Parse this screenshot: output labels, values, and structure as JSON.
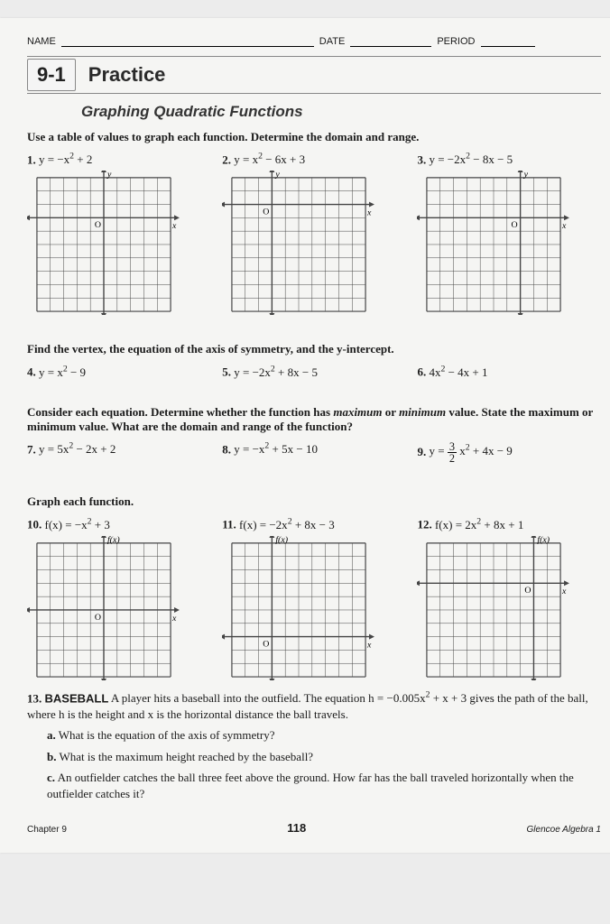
{
  "header": {
    "name_label": "NAME",
    "date_label": "DATE",
    "period_label": "PERIOD"
  },
  "lesson": {
    "number": "9-1",
    "title": "Practice",
    "subtitle": "Graphing Quadratic Functions"
  },
  "section1": {
    "instruction": "Use a table of values to graph each function. Determine the domain and range.",
    "problems": [
      {
        "num": "1.",
        "eq": "y = −x<sup>2</sup> + 2"
      },
      {
        "num": "2.",
        "eq": "y = x<sup>2</sup> − 6x + 3"
      },
      {
        "num": "3.",
        "eq": "y = −2x<sup>2</sup> − 8x − 5"
      }
    ]
  },
  "grid": {
    "cells": 10,
    "size": 150,
    "stroke": "#444444",
    "label_y": "y",
    "label_x": "x",
    "label_fx": "f(x)",
    "origin": "O"
  },
  "grid_configs": {
    "p1": {
      "ox": 5,
      "oy": 3,
      "ylab": "y"
    },
    "p2": {
      "ox": 3,
      "oy": 2,
      "ylab": "y"
    },
    "p3": {
      "ox": 7,
      "oy": 3,
      "ylab": "y"
    },
    "p10": {
      "ox": 5,
      "oy": 5,
      "ylab": "f(x)"
    },
    "p11": {
      "ox": 3,
      "oy": 7,
      "ylab": "f(x)"
    },
    "p12": {
      "ox": 8,
      "oy": 3,
      "ylab": "f(x)"
    }
  },
  "section2": {
    "instruction": "Find the vertex, the equation of the axis of symmetry, and the y-intercept.",
    "problems": [
      {
        "num": "4.",
        "eq": "y = x<sup>2</sup> − 9"
      },
      {
        "num": "5.",
        "eq": "y = −2x<sup>2</sup> + 8x − 5"
      },
      {
        "num": "6.",
        "eq": "4x<sup>2</sup> − 4x + 1"
      }
    ]
  },
  "section3": {
    "instruction_html": "Consider each equation. Determine whether the function has <em class='term'>maximum</em> or <em class='term'>minimum</em> value. State the maximum or minimum value. What are the domain and range of the function?",
    "problems": [
      {
        "num": "7.",
        "eq": "y = 5x<sup>2</sup> − 2x + 2"
      },
      {
        "num": "8.",
        "eq": "y = −x<sup>2</sup> + 5x − 10"
      },
      {
        "num": "9.",
        "eq": "y = <span class='frac'><span class='n'>3</span><span class='d'>2</span></span> x<sup>2</sup> + 4x − 9"
      }
    ]
  },
  "section4": {
    "instruction": "Graph each function.",
    "problems": [
      {
        "num": "10.",
        "eq": "f(x) = −x<sup>2</sup> + 3"
      },
      {
        "num": "11.",
        "eq": "f(x) = −2x<sup>2</sup> + 8x − 3"
      },
      {
        "num": "12.",
        "eq": "f(x) = 2x<sup>2</sup> + 8x + 1"
      }
    ]
  },
  "section5": {
    "num": "13.",
    "topic": "BASEBALL",
    "text": " A player hits a baseball into the outfield. The equation h = −0.005x<sup>2</sup> + x + 3 gives the path of the ball, where h is the height and x is the horizontal distance the ball travels.",
    "parts": [
      {
        "label": "a.",
        "text": "What is the equation of the axis of symmetry?"
      },
      {
        "label": "b.",
        "text": "What is the maximum height reached by the baseball?"
      },
      {
        "label": "c.",
        "text": "An outfielder catches the ball three feet above the ground. How far has the ball traveled horizontally when the outfielder catches it?"
      }
    ]
  },
  "footer": {
    "chapter": "Chapter 9",
    "page": "118",
    "source": "Glencoe Algebra 1"
  }
}
